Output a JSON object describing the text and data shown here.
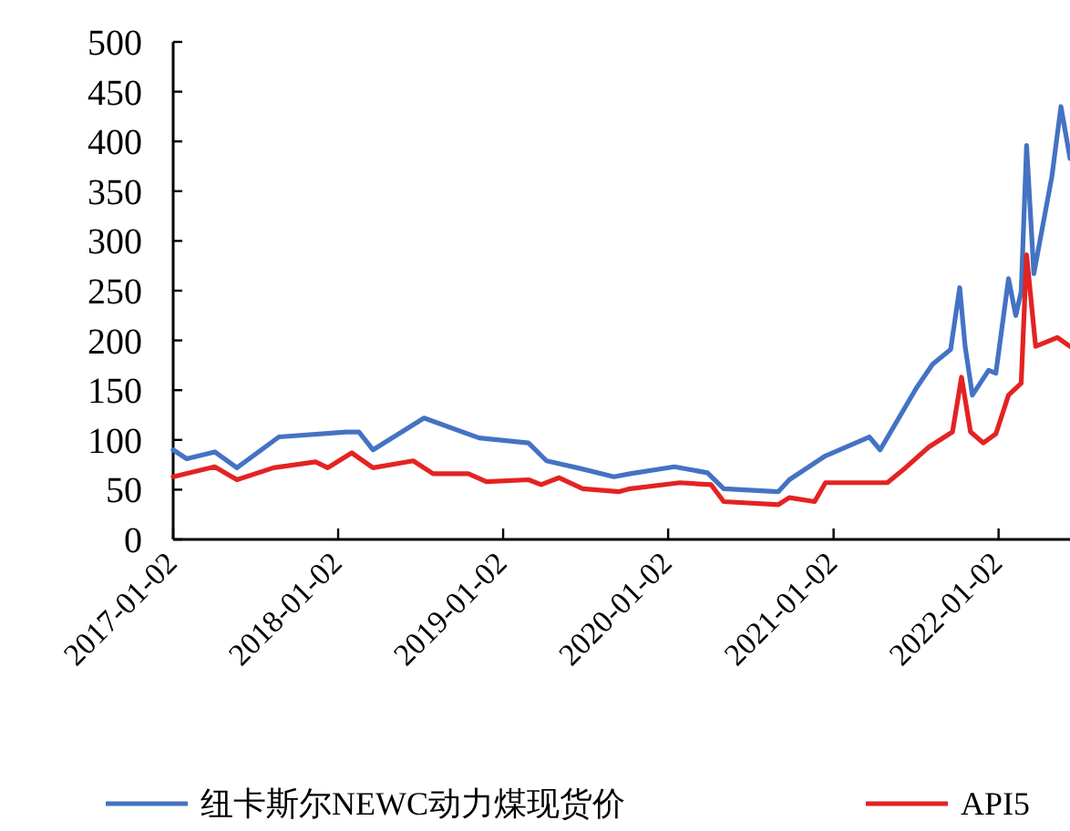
{
  "chart_data": {
    "type": "line",
    "xlim": [
      "2017-01-02",
      "2022-06-09"
    ],
    "xticks": [
      "2017-01-02",
      "2018-01-02",
      "2019-01-02",
      "2020-01-02",
      "2021-01-02",
      "2022-01-02"
    ],
    "ylim": [
      0,
      500
    ],
    "yticks": [
      0,
      50,
      100,
      150,
      200,
      250,
      300,
      350,
      400,
      450,
      500
    ],
    "grid": false,
    "legend": "bottom",
    "line_style": "solid",
    "marker": "none",
    "series": [
      {
        "name": "纽卡斯尔NEWC动力煤现货价",
        "color": "#4472c4",
        "x": [
          "2017-01-02",
          "2017-02-01",
          "2017-04-04",
          "2017-05-23",
          "2017-08-24",
          "2018-01-20",
          "2018-02-17",
          "2018-03-20",
          "2018-07-11",
          "2018-11-10",
          "2019-02-27",
          "2019-04-08",
          "2019-06-15",
          "2019-09-04",
          "2019-10-10",
          "2020-01-16",
          "2020-03-29",
          "2020-05-04",
          "2020-09-02",
          "2020-09-26",
          "2020-12-15",
          "2021-03-22",
          "2021-04-15",
          "2021-05-25",
          "2021-07-04",
          "2021-08-09",
          "2021-09-18",
          "2021-10-08",
          "2021-10-20",
          "2021-11-05",
          "2021-12-11",
          "2021-12-27",
          "2022-01-24",
          "2022-02-09",
          "2022-02-21",
          "2022-03-05",
          "2022-03-21",
          "2022-04-30",
          "2022-05-20",
          "2022-06-09"
        ],
        "values": [
          90,
          81,
          88,
          72,
          103,
          108,
          108,
          90,
          122,
          102,
          97,
          79,
          72,
          63,
          66,
          73,
          67,
          51,
          48,
          60,
          84,
          103,
          90,
          121,
          152,
          176,
          191,
          253,
          194,
          145,
          170,
          167,
          262,
          225,
          249,
          396,
          267,
          365,
          435,
          383
        ]
      },
      {
        "name": "API5",
        "color": "#e32322",
        "x": [
          "2017-01-02",
          "2017-04-04",
          "2017-05-23",
          "2017-08-12",
          "2017-11-13",
          "2017-12-10",
          "2018-02-01",
          "2018-03-20",
          "2018-06-17",
          "2018-07-31",
          "2018-10-17",
          "2018-11-26",
          "2019-02-27",
          "2019-03-27",
          "2019-05-06",
          "2019-06-27",
          "2019-09-16",
          "2019-10-10",
          "2020-01-28",
          "2020-04-06",
          "2020-05-04",
          "2020-09-02",
          "2020-09-26",
          "2020-11-21",
          "2020-12-15",
          "2021-05-01",
          "2021-06-10",
          "2021-08-01",
          "2021-09-22",
          "2021-10-12",
          "2021-11-01",
          "2021-11-29",
          "2021-12-27",
          "2022-01-24",
          "2022-02-21",
          "2022-03-05",
          "2022-03-25",
          "2022-05-12",
          "2022-06-09"
        ],
        "values": [
          63,
          73,
          60,
          72,
          78,
          72,
          87,
          72,
          79,
          66,
          66,
          58,
          60,
          55,
          62,
          51,
          48,
          51,
          57,
          55,
          38,
          35,
          42,
          38,
          57,
          57,
          72,
          93,
          108,
          163,
          108,
          97,
          106,
          145,
          157,
          286,
          194,
          203,
          194
        ]
      }
    ]
  }
}
